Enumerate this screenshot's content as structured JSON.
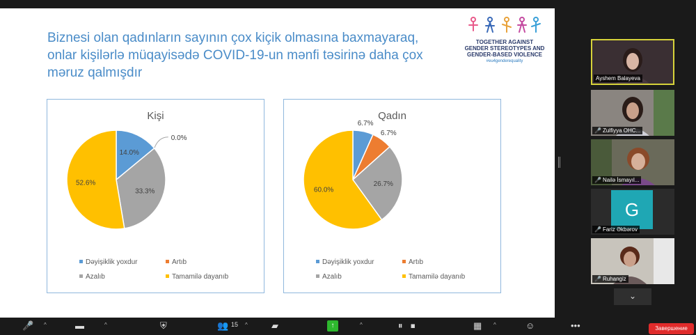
{
  "slide": {
    "title": "Biznesi olan qadınların sayının çox kiçik olmasına baxmayaraq, onlar kişilərlə müqayisədə COVID-19-un mənfi təsirinə daha çox məruz qalmışdır",
    "logo": {
      "line1": "TOGETHER AGAINST",
      "line2": "GENDER STEREOTYPES AND",
      "line3": "GENDER-BASED VIOLENCE",
      "hashtag": "#eu4genderequality"
    }
  },
  "chart_data": [
    {
      "type": "pie",
      "title": "Kişi",
      "categories": [
        "Dəyişiklik yoxdur",
        "Artıb",
        "Azalıb",
        "Tamamilə dayanıb"
      ],
      "values": [
        14.0,
        0.0,
        33.3,
        52.6
      ],
      "labels": [
        "14.0%",
        "0.0%",
        "33.3%",
        "52.6%"
      ],
      "colors": [
        "#5b9bd5",
        "#ed7d31",
        "#a5a5a5",
        "#ffc000"
      ],
      "legend_position": "bottom"
    },
    {
      "type": "pie",
      "title": "Qadın",
      "categories": [
        "Dəyişiklik yoxdur",
        "Artıb",
        "Azalıb",
        "Tamamilə dayanıb"
      ],
      "values": [
        6.7,
        6.7,
        26.7,
        60.0
      ],
      "labels": [
        "6.7%",
        "6.7%",
        "26.7%",
        "60.0%"
      ],
      "colors": [
        "#5b9bd5",
        "#ed7d31",
        "#a5a5a5",
        "#ffc000"
      ],
      "legend_position": "bottom"
    }
  ],
  "participants": [
    {
      "name": "Ayshem Balayeva",
      "active": true,
      "muted": false
    },
    {
      "name": "Zulfiyya OHC...",
      "active": false,
      "muted": true
    },
    {
      "name": "Nailə İsmayıl...",
      "active": false,
      "muted": true
    },
    {
      "name": "Fariz Əkbərov",
      "active": false,
      "muted": true,
      "initial": "G"
    },
    {
      "name": "Ruhangiz",
      "active": false,
      "muted": true
    }
  ],
  "toolbar": {
    "participants_count": "15",
    "end_label": "Завершение"
  },
  "colors": {
    "accent_title": "#4a8cc8",
    "active_border": "#d7d33a",
    "end_button": "#e02b2b"
  }
}
